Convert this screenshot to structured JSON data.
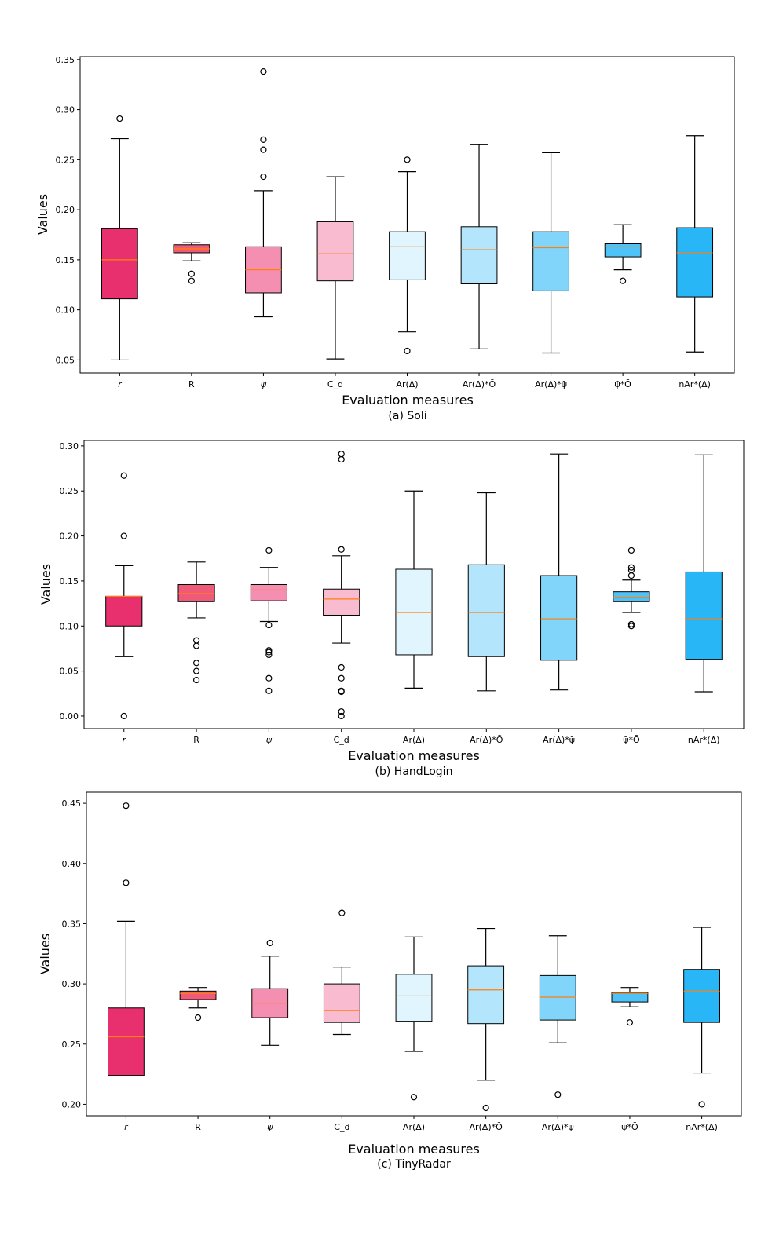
{
  "figure": {
    "colors": {
      "r": "#e8306f",
      "R": "#ef5a78",
      "psi": "#f48fb1",
      "Cd": "#f8bbd0",
      "Ar": "#e1f5fe",
      "ArO": "#b3e5fc",
      "ArPsi": "#81d4fa",
      "psiO": "#4fc3f7",
      "nAr": "#29b6f6",
      "median": "#ff7f0e",
      "line": "#000000"
    }
  },
  "chart_data": [
    {
      "type": "box",
      "caption": "(a) Soli",
      "xlabel": "Evaluation measures",
      "ylabel": "Values",
      "ylim": [
        0.037,
        0.353
      ],
      "yticks": [
        "0.05",
        "0.10",
        "0.15",
        "0.20",
        "0.25",
        "0.30",
        "0.35"
      ],
      "categories": [
        "r",
        "R",
        "ψ",
        "C_d",
        "Ar(Δ)",
        "Ar(Δ)*Ō",
        "Ar(Δ)*ψ̄",
        "ψ̄*Ō",
        "nAr*(Δ)"
      ],
      "boxes": [
        {
          "whislo": 0.05,
          "q1": 0.111,
          "med": 0.15,
          "q3": 0.181,
          "whishi": 0.271,
          "fliers": [
            0.291
          ]
        },
        {
          "whislo": 0.149,
          "q1": 0.157,
          "med": 0.161,
          "q3": 0.165,
          "whishi": 0.167,
          "fliers": [
            0.129,
            0.136
          ]
        },
        {
          "whislo": 0.093,
          "q1": 0.117,
          "med": 0.14,
          "q3": 0.163,
          "whishi": 0.219,
          "fliers": [
            0.233,
            0.26,
            0.27,
            0.338
          ]
        },
        {
          "whislo": 0.051,
          "q1": 0.129,
          "med": 0.156,
          "q3": 0.188,
          "whishi": 0.233,
          "fliers": []
        },
        {
          "whislo": 0.078,
          "q1": 0.13,
          "med": 0.163,
          "q3": 0.178,
          "whishi": 0.238,
          "fliers": [
            0.059,
            0.25
          ]
        },
        {
          "whislo": 0.061,
          "q1": 0.126,
          "med": 0.16,
          "q3": 0.183,
          "whishi": 0.265,
          "fliers": []
        },
        {
          "whislo": 0.057,
          "q1": 0.119,
          "med": 0.162,
          "q3": 0.178,
          "whishi": 0.257,
          "fliers": []
        },
        {
          "whislo": 0.14,
          "q1": 0.153,
          "med": 0.163,
          "q3": 0.166,
          "whishi": 0.185,
          "fliers": [
            0.129
          ]
        },
        {
          "whislo": 0.058,
          "q1": 0.113,
          "med": 0.157,
          "q3": 0.182,
          "whishi": 0.274,
          "fliers": []
        }
      ]
    },
    {
      "type": "box",
      "caption": "(b) HandLogin",
      "xlabel": "Evaluation measures",
      "ylabel": "Values",
      "ylim": [
        -0.014,
        0.306
      ],
      "yticks": [
        "0.00",
        "0.05",
        "0.10",
        "0.15",
        "0.20",
        "0.25",
        "0.30"
      ],
      "categories": [
        "r",
        "R",
        "ψ",
        "C_d",
        "Ar(Δ)",
        "Ar(Δ)*Ō",
        "Ar(Δ)*ψ̄",
        "ψ̄*Ō",
        "nAr*(Δ)"
      ],
      "boxes": [
        {
          "whislo": 0.066,
          "q1": 0.1,
          "med": 0.133,
          "q3": 0.133,
          "whishi": 0.167,
          "fliers": [
            0.0,
            0.2,
            0.267
          ]
        },
        {
          "whislo": 0.109,
          "q1": 0.127,
          "med": 0.136,
          "q3": 0.146,
          "whishi": 0.171,
          "fliers": [
            0.04,
            0.05,
            0.059,
            0.078,
            0.084
          ]
        },
        {
          "whislo": 0.105,
          "q1": 0.128,
          "med": 0.14,
          "q3": 0.146,
          "whishi": 0.165,
          "fliers": [
            0.028,
            0.042,
            0.068,
            0.071,
            0.073,
            0.101,
            0.184
          ]
        },
        {
          "whislo": 0.081,
          "q1": 0.112,
          "med": 0.13,
          "q3": 0.141,
          "whishi": 0.178,
          "fliers": [
            0.0,
            0.005,
            0.027,
            0.028,
            0.042,
            0.054,
            0.185,
            0.285,
            0.291
          ]
        },
        {
          "whislo": 0.031,
          "q1": 0.068,
          "med": 0.115,
          "q3": 0.163,
          "whishi": 0.25,
          "fliers": []
        },
        {
          "whislo": 0.028,
          "q1": 0.066,
          "med": 0.115,
          "q3": 0.168,
          "whishi": 0.248,
          "fliers": []
        },
        {
          "whislo": 0.029,
          "q1": 0.062,
          "med": 0.108,
          "q3": 0.156,
          "whishi": 0.291,
          "fliers": []
        },
        {
          "whislo": 0.115,
          "q1": 0.127,
          "med": 0.132,
          "q3": 0.138,
          "whishi": 0.151,
          "fliers": [
            0.1,
            0.102,
            0.156,
            0.162,
            0.165,
            0.184
          ]
        },
        {
          "whislo": 0.027,
          "q1": 0.063,
          "med": 0.108,
          "q3": 0.16,
          "whishi": 0.29,
          "fliers": []
        }
      ]
    },
    {
      "type": "box",
      "caption": "(c) TinyRadar",
      "xlabel": "Evaluation measures",
      "ylabel": "Values",
      "ylim": [
        0.1905,
        0.4592
      ],
      "yticks": [
        "0.20",
        "0.25",
        "0.30",
        "0.35",
        "0.40",
        "0.45"
      ],
      "categories": [
        "r",
        "R",
        "ψ",
        "C_d",
        "Ar(Δ)",
        "Ar(Δ)*Ō",
        "Ar(Δ)*ψ̄",
        "ψ̄*Ō",
        "nAr*(Δ)"
      ],
      "boxes": [
        {
          "whislo": 0.224,
          "q1": 0.224,
          "med": 0.256,
          "q3": 0.28,
          "whishi": 0.352,
          "fliers": [
            0.384,
            0.448
          ]
        },
        {
          "whislo": 0.28,
          "q1": 0.287,
          "med": 0.292,
          "q3": 0.294,
          "whishi": 0.297,
          "fliers": [
            0.272
          ]
        },
        {
          "whislo": 0.249,
          "q1": 0.272,
          "med": 0.284,
          "q3": 0.296,
          "whishi": 0.323,
          "fliers": [
            0.334
          ]
        },
        {
          "whislo": 0.258,
          "q1": 0.268,
          "med": 0.278,
          "q3": 0.3,
          "whishi": 0.314,
          "fliers": [
            0.359
          ]
        },
        {
          "whislo": 0.244,
          "q1": 0.269,
          "med": 0.29,
          "q3": 0.308,
          "whishi": 0.339,
          "fliers": [
            0.206
          ]
        },
        {
          "whislo": 0.22,
          "q1": 0.267,
          "med": 0.295,
          "q3": 0.315,
          "whishi": 0.346,
          "fliers": [
            0.197
          ]
        },
        {
          "whislo": 0.251,
          "q1": 0.27,
          "med": 0.289,
          "q3": 0.307,
          "whishi": 0.34,
          "fliers": [
            0.208
          ]
        },
        {
          "whislo": 0.281,
          "q1": 0.285,
          "med": 0.292,
          "q3": 0.293,
          "whishi": 0.297,
          "fliers": [
            0.268
          ]
        },
        {
          "whislo": 0.226,
          "q1": 0.268,
          "med": 0.294,
          "q3": 0.312,
          "whishi": 0.347,
          "fliers": [
            0.2
          ]
        }
      ]
    }
  ]
}
